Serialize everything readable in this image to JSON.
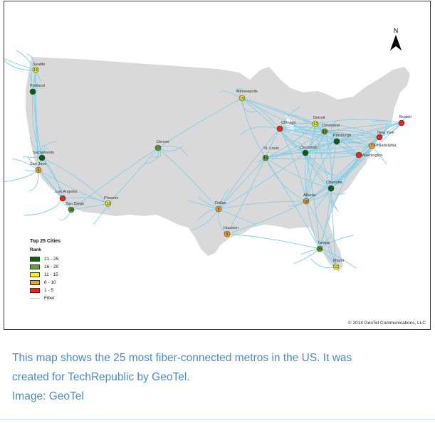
{
  "map": {
    "compass_label": "N",
    "legend": {
      "title": "Top 25 Cities",
      "subtitle": "Rank",
      "items": [
        {
          "label": "21 - 25",
          "color": "#0b5e14"
        },
        {
          "label": "16 - 20",
          "color": "#6aa428"
        },
        {
          "label": "11 - 15",
          "color": "#f5f51c"
        },
        {
          "label": "6 - 10",
          "color": "#f5a11c"
        },
        {
          "label": "1 - 5",
          "color": "#e8271b"
        }
      ],
      "fiber_label": "Fiber",
      "fiber_color": "#7fd0ec"
    },
    "copyright": "© 2014 GeoTel Communications, LLC",
    "land_color": "#d9d9d9",
    "cities": [
      {
        "name": "Seattle",
        "rank": "14",
        "color": "#f5f51c"
      },
      {
        "name": "Portland",
        "rank": "",
        "color": "#0b5e14"
      },
      {
        "name": "Sacramento",
        "rank": "",
        "color": "#0b5e14"
      },
      {
        "name": "San Jose",
        "rank": "6",
        "color": "#f5a11c"
      },
      {
        "name": "Los Angeles",
        "rank": "",
        "color": "#e8271b"
      },
      {
        "name": "San Diego",
        "rank": "18",
        "color": "#6aa428"
      },
      {
        "name": "Phoenix",
        "rank": "13",
        "color": "#f5f51c"
      },
      {
        "name": "Denver",
        "rank": "17",
        "color": "#6aa428"
      },
      {
        "name": "Dallas",
        "rank": "8",
        "color": "#f5a11c"
      },
      {
        "name": "Houston",
        "rank": "9",
        "color": "#f5a11c"
      },
      {
        "name": "Minneapolis",
        "rank": "15",
        "color": "#f5f51c"
      },
      {
        "name": "Chicago",
        "rank": "",
        "color": "#e8271b"
      },
      {
        "name": "St. Louis",
        "rank": "19",
        "color": "#6aa428"
      },
      {
        "name": "Detroit",
        "rank": "12",
        "color": "#f5f51c"
      },
      {
        "name": "Cleveland",
        "rank": "16",
        "color": "#6aa428"
      },
      {
        "name": "Cincinnati",
        "rank": "",
        "color": "#0b5e14"
      },
      {
        "name": "Pittsburgh",
        "rank": "",
        "color": "#0b5e14"
      },
      {
        "name": "Atlanta",
        "rank": "10",
        "color": "#f5a11c"
      },
      {
        "name": "Charlotte",
        "rank": "",
        "color": "#0b5e14"
      },
      {
        "name": "Tampa",
        "rank": "20",
        "color": "#6aa428"
      },
      {
        "name": "Miami",
        "rank": "11",
        "color": "#f5f51c"
      },
      {
        "name": "Washington",
        "rank": "",
        "color": "#e8271b"
      },
      {
        "name": "Philadelphia",
        "rank": "7",
        "color": "#f5a11c"
      },
      {
        "name": "New York",
        "rank": "",
        "color": "#e8271b"
      },
      {
        "name": "Boston",
        "rank": "",
        "color": "#e8271b"
      }
    ]
  },
  "caption": {
    "line1": "This map shows the 25 most fiber-connected metros in the US. It was",
    "line2": "created for TechRepublic by GeoTel.",
    "line3": "Image: GeoTel"
  }
}
